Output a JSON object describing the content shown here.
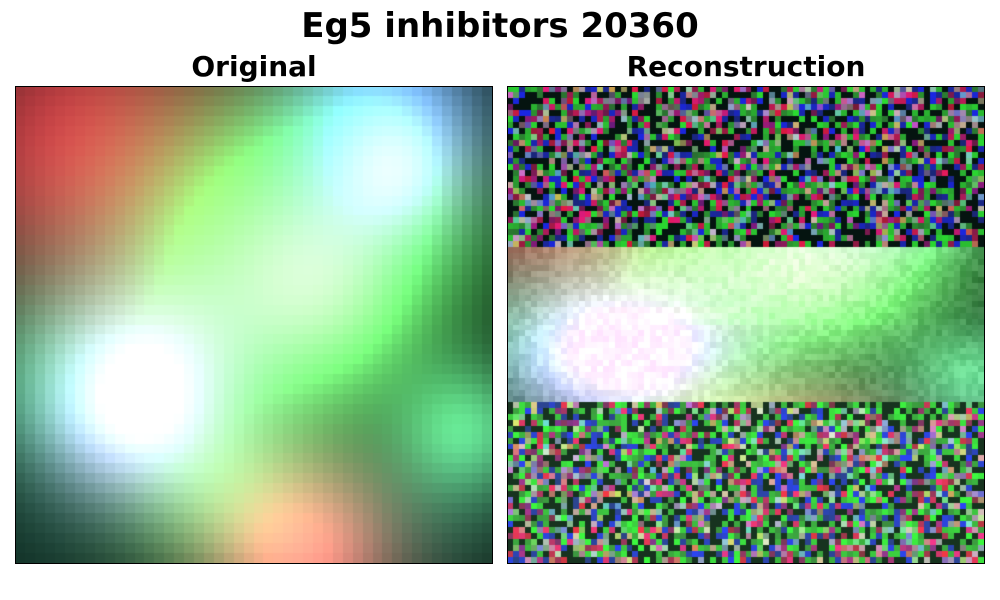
{
  "figure": {
    "title": "Eg5 inhibitors 20360"
  },
  "panels": [
    {
      "title": "Original"
    },
    {
      "title": "Reconstruction"
    }
  ],
  "palette": {
    "red": "#ff5a64",
    "green": "#3cdc50",
    "blue": "#5a78e6",
    "dark": "#051410"
  }
}
